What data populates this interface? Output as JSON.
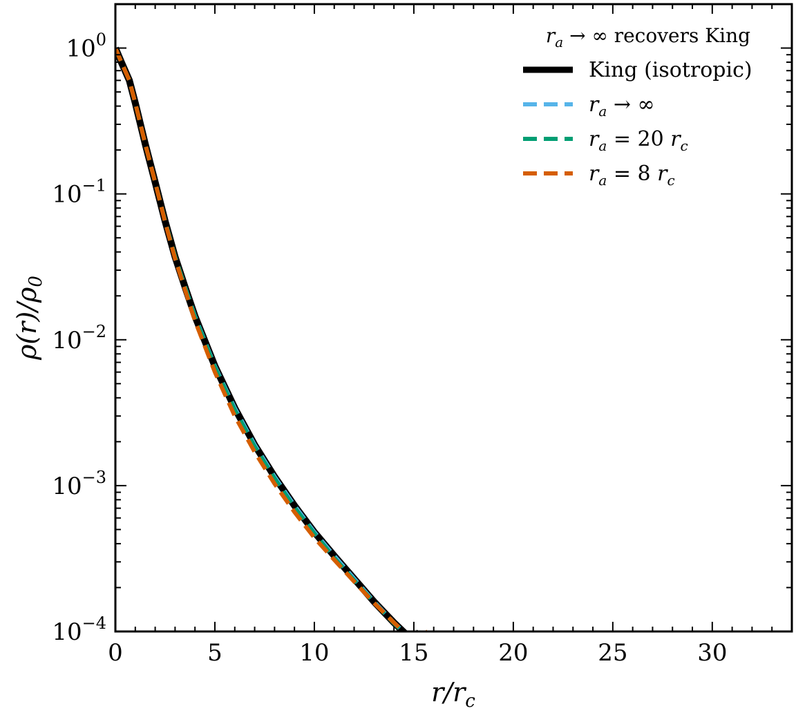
{
  "chart_data": {
    "type": "line",
    "title": "",
    "xlabel": "r/r_c",
    "ylabel": "ρ(r)/ρ_0",
    "xlim": [
      0,
      34
    ],
    "ylim": [
      0.0001,
      2
    ],
    "yscale": "log",
    "grid": false,
    "x_ticks": [
      0,
      5,
      10,
      15,
      20,
      25,
      30
    ],
    "x_tick_labels": [
      "0",
      "5",
      "10",
      "15",
      "20",
      "25",
      "30"
    ],
    "y_ticks": [
      1,
      0.1,
      0.01,
      0.001,
      0.0001
    ],
    "y_tick_labels": [
      {
        "base": "10",
        "exp": "0"
      },
      {
        "base": "10",
        "exp": "−1"
      },
      {
        "base": "10",
        "exp": "−2"
      },
      {
        "base": "10",
        "exp": "−3"
      },
      {
        "base": "10",
        "exp": "−4"
      }
    ],
    "legend": {
      "placement": "top-right",
      "title": "r_a → ∞ recovers King",
      "title_text": "recovers King"
    },
    "series": [
      {
        "name": "King (isotropic)",
        "color": "#000000",
        "style": "solid",
        "x": [
          0,
          0.3,
          0.7,
          1.0,
          1.5,
          2.0,
          2.5,
          3.0,
          3.5,
          4.0,
          5.0,
          6.0,
          7.0,
          8.0,
          9.0,
          10.0,
          11.0,
          12.0,
          13.0,
          14.0,
          15.0,
          15.3
        ],
        "y": [
          1.0,
          0.8,
          0.6,
          0.42,
          0.22,
          0.12,
          0.065,
          0.037,
          0.023,
          0.0145,
          0.0066,
          0.0034,
          0.0019,
          0.00115,
          0.00073,
          0.00048,
          0.00033,
          0.00023,
          0.00016,
          0.000115,
          8.5e-05,
          0.0001
        ]
      },
      {
        "name": "r_a → ∞",
        "legend_label": {
          "sym": "r",
          "sub": "a",
          "rest": " → ∞"
        },
        "color": "#56b4e9",
        "style": "dashed",
        "x": [
          0,
          0.3,
          0.7,
          1.0,
          1.5,
          2.0,
          2.5,
          3.0,
          3.5,
          4.0,
          5.0,
          6.0,
          7.0,
          8.0,
          9.0,
          10.0,
          11.0,
          12.0,
          13.0,
          14.0,
          15.0,
          15.3
        ],
        "y": [
          1.0,
          0.8,
          0.6,
          0.42,
          0.22,
          0.12,
          0.065,
          0.037,
          0.023,
          0.0145,
          0.0066,
          0.0034,
          0.0019,
          0.00115,
          0.00073,
          0.00048,
          0.00033,
          0.00023,
          0.00016,
          0.000115,
          8.5e-05,
          0.0001
        ]
      },
      {
        "name": "r_a = 20 r_c",
        "legend_label": {
          "sym": "r",
          "sub": "a",
          "rest": " = 20 ",
          "sym2": "r",
          "sub2": "c"
        },
        "color": "#009e73",
        "style": "dashed",
        "x": [
          0,
          0.3,
          0.7,
          1.0,
          1.5,
          2.0,
          2.5,
          3.0,
          3.5,
          4.0,
          5.0,
          6.0,
          7.0,
          8.0,
          9.0,
          10.0,
          11.0,
          12.0,
          13.0,
          14.0,
          15.0,
          15.4
        ],
        "y": [
          1.0,
          0.8,
          0.6,
          0.42,
          0.22,
          0.12,
          0.065,
          0.037,
          0.023,
          0.0143,
          0.0065,
          0.0033,
          0.00185,
          0.00112,
          0.00071,
          0.00047,
          0.00032,
          0.000225,
          0.000158,
          0.000114,
          8.4e-05,
          0.0001
        ]
      },
      {
        "name": "r_a = 8 r_c",
        "legend_label": {
          "sym": "r",
          "sub": "a",
          "rest": " = 8 ",
          "sym2": "r",
          "sub2": "c"
        },
        "color": "#d55e00",
        "style": "dashed",
        "x": [
          0,
          0.3,
          0.7,
          1.0,
          1.5,
          2.0,
          2.5,
          3.0,
          3.5,
          4.0,
          5.0,
          6.0,
          7.0,
          8.0,
          9.0,
          10.0,
          11.0,
          12.0,
          13.0,
          14.0,
          15.0,
          15.7
        ],
        "y": [
          1.0,
          0.8,
          0.6,
          0.42,
          0.22,
          0.12,
          0.064,
          0.036,
          0.022,
          0.0135,
          0.006,
          0.003,
          0.0017,
          0.00103,
          0.00066,
          0.00044,
          0.00031,
          0.00022,
          0.000157,
          0.000115,
          8.6e-05,
          0.0001
        ]
      }
    ]
  }
}
